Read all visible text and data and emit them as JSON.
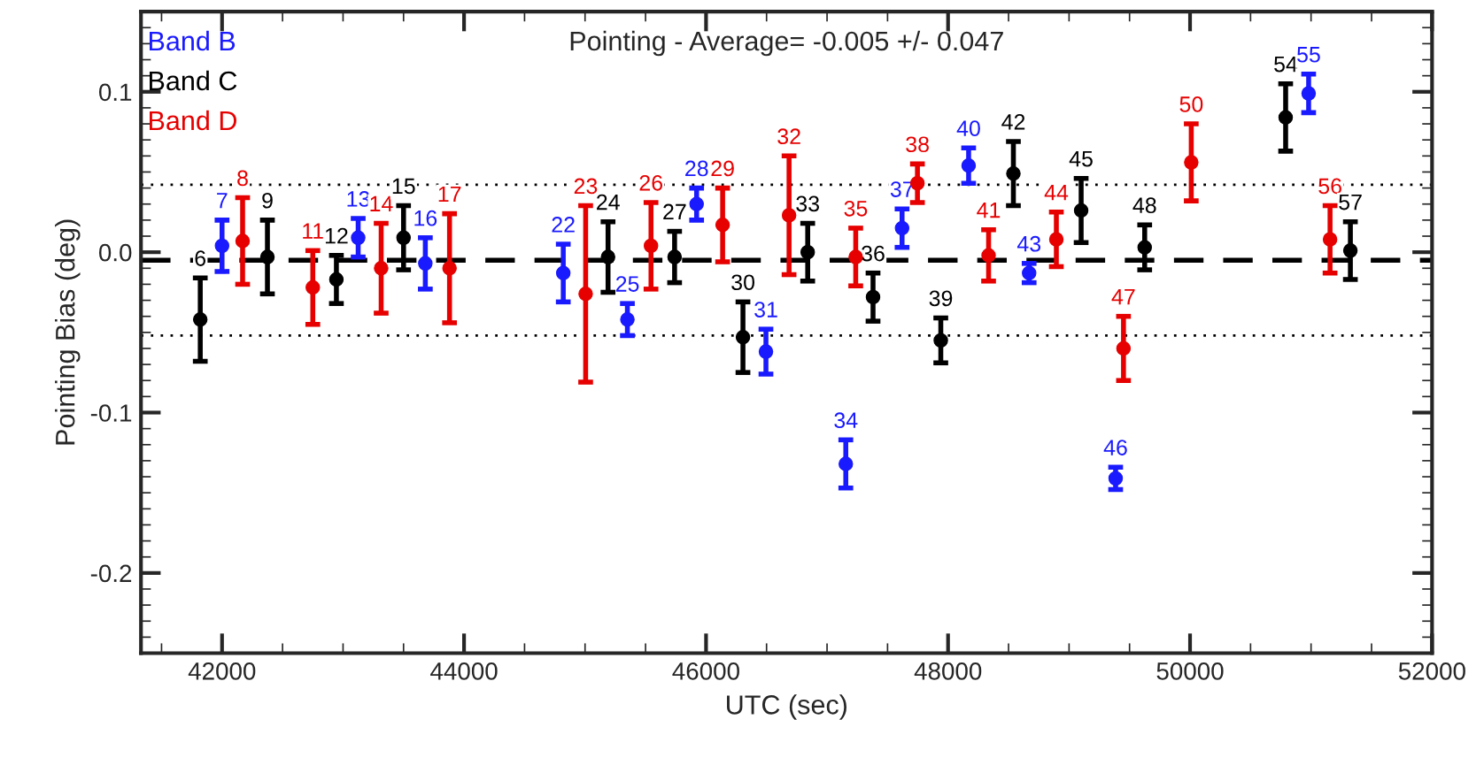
{
  "chart_data": {
    "type": "scatter",
    "title": "Pointing - Average= -0.005 +/- 0.047",
    "xlabel": "UTC (sec)",
    "ylabel": "Pointing Bias (deg)",
    "xlim": [
      41330,
      52000
    ],
    "xticks": [
      42000,
      44000,
      46000,
      48000,
      50000,
      52000
    ],
    "ylim": [
      -0.25,
      0.15
    ],
    "yticks": [
      {
        "value": -0.2,
        "label": "-0.2"
      },
      {
        "value": -0.1,
        "label": "-0.1"
      },
      {
        "value": 0,
        "label": "0.0"
      },
      {
        "value": 0.1,
        "label": "0.1"
      }
    ],
    "grid": false,
    "legend": "top left",
    "marker": "circle",
    "ref_lines": [
      {
        "axis": "y",
        "value": -0.005,
        "line_style": "dashed",
        "color": "#000000"
      },
      {
        "axis": "y",
        "value": 0.042,
        "line_style": "dotted",
        "color": "#000000"
      },
      {
        "axis": "y",
        "value": -0.052,
        "line_style": "dotted",
        "color": "#000000"
      }
    ],
    "series": [
      {
        "name": "Band B",
        "color": "#1a1aff",
        "x": [
          42000,
          43125,
          43680,
          44820,
          45350,
          45922,
          46495,
          47155,
          47620,
          48170,
          48670,
          49385,
          50980
        ],
        "values": [
          0.004,
          0.009,
          -0.007,
          -0.013,
          -0.042,
          0.03,
          -0.062,
          -0.132,
          0.015,
          0.054,
          -0.013,
          -0.141,
          0.099
        ],
        "errors": [
          0.016,
          0.012,
          0.016,
          0.018,
          0.01,
          0.01,
          0.014,
          0.015,
          0.012,
          0.011,
          0.006,
          0.007,
          0.012
        ]
      },
      {
        "name": "Band C",
        "color": "#000000",
        "x": [
          41820,
          42375,
          42945,
          43500,
          45190,
          45740,
          46305,
          46840,
          47380,
          47940,
          48540,
          49100,
          49625,
          50790,
          51325
        ],
        "values": [
          -0.042,
          -0.003,
          -0.017,
          0.009,
          -0.003,
          -0.003,
          -0.053,
          0.0,
          -0.028,
          -0.055,
          0.049,
          0.026,
          0.003,
          0.084,
          0.001
        ],
        "errors": [
          0.026,
          0.023,
          0.015,
          0.02,
          0.022,
          0.016,
          0.022,
          0.018,
          0.015,
          0.014,
          0.02,
          0.02,
          0.014,
          0.021,
          0.018
        ]
      },
      {
        "name": "Band D",
        "color": "#e60000",
        "x": [
          42170,
          42750,
          43315,
          43880,
          45005,
          45545,
          46137,
          46686,
          47237,
          47747,
          48335,
          48895,
          49450,
          50010,
          51157
        ],
        "values": [
          0.007,
          -0.022,
          -0.01,
          -0.01,
          -0.026,
          0.004,
          0.017,
          0.023,
          -0.003,
          0.043,
          -0.002,
          0.008,
          -0.06,
          0.056,
          0.008
        ],
        "errors": [
          0.027,
          0.023,
          0.028,
          0.034,
          0.055,
          0.027,
          0.023,
          0.037,
          0.018,
          0.012,
          0.016,
          0.017,
          0.02,
          0.024,
          0.021
        ]
      }
    ],
    "annotations": [
      {
        "text": "6",
        "x": 41820,
        "y": -0.016
      },
      {
        "text": "7",
        "x": 42000,
        "y": 0.02
      },
      {
        "text": "8",
        "x": 42170,
        "y": 0.034
      },
      {
        "text": "9",
        "x": 42375,
        "y": 0.02
      },
      {
        "text": "11",
        "x": 42750,
        "y": 0.001
      },
      {
        "text": "12",
        "x": 42945,
        "y": -0.002
      },
      {
        "text": "13",
        "x": 43125,
        "y": 0.021
      },
      {
        "text": "14",
        "x": 43315,
        "y": 0.018
      },
      {
        "text": "15",
        "x": 43500,
        "y": 0.029
      },
      {
        "text": "16",
        "x": 43680,
        "y": 0.009
      },
      {
        "text": "17",
        "x": 43880,
        "y": 0.024
      },
      {
        "text": "22",
        "x": 44820,
        "y": 0.005
      },
      {
        "text": "23",
        "x": 45005,
        "y": 0.029
      },
      {
        "text": "24",
        "x": 45190,
        "y": 0.019
      },
      {
        "text": "25",
        "x": 45350,
        "y": -0.032
      },
      {
        "text": "26",
        "x": 45545,
        "y": 0.031
      },
      {
        "text": "27",
        "x": 45740,
        "y": 0.013
      },
      {
        "text": "28",
        "x": 45922,
        "y": 0.04
      },
      {
        "text": "29",
        "x": 46137,
        "y": 0.04
      },
      {
        "text": "30",
        "x": 46305,
        "y": -0.031
      },
      {
        "text": "31",
        "x": 46495,
        "y": -0.048
      },
      {
        "text": "32",
        "x": 46686,
        "y": 0.06
      },
      {
        "text": "33",
        "x": 46840,
        "y": 0.018
      },
      {
        "text": "34",
        "x": 47155,
        "y": -0.117
      },
      {
        "text": "35",
        "x": 47237,
        "y": 0.015
      },
      {
        "text": "36",
        "x": 47380,
        "y": -0.013
      },
      {
        "text": "37",
        "x": 47620,
        "y": 0.027
      },
      {
        "text": "38",
        "x": 47747,
        "y": 0.055
      },
      {
        "text": "39",
        "x": 47940,
        "y": -0.041
      },
      {
        "text": "40",
        "x": 48170,
        "y": 0.065
      },
      {
        "text": "41",
        "x": 48335,
        "y": 0.014
      },
      {
        "text": "42",
        "x": 48540,
        "y": 0.069
      },
      {
        "text": "43",
        "x": 48670,
        "y": -0.007
      },
      {
        "text": "44",
        "x": 48895,
        "y": 0.025
      },
      {
        "text": "45",
        "x": 49100,
        "y": 0.046
      },
      {
        "text": "46",
        "x": 49385,
        "y": -0.134
      },
      {
        "text": "47",
        "x": 49450,
        "y": -0.04
      },
      {
        "text": "48",
        "x": 49625,
        "y": 0.017
      },
      {
        "text": "50",
        "x": 50010,
        "y": 0.08
      },
      {
        "text": "54",
        "x": 50790,
        "y": 0.105
      },
      {
        "text": "55",
        "x": 50980,
        "y": 0.111
      },
      {
        "text": "56",
        "x": 51157,
        "y": 0.029
      },
      {
        "text": "57",
        "x": 51325,
        "y": 0.019
      }
    ]
  }
}
